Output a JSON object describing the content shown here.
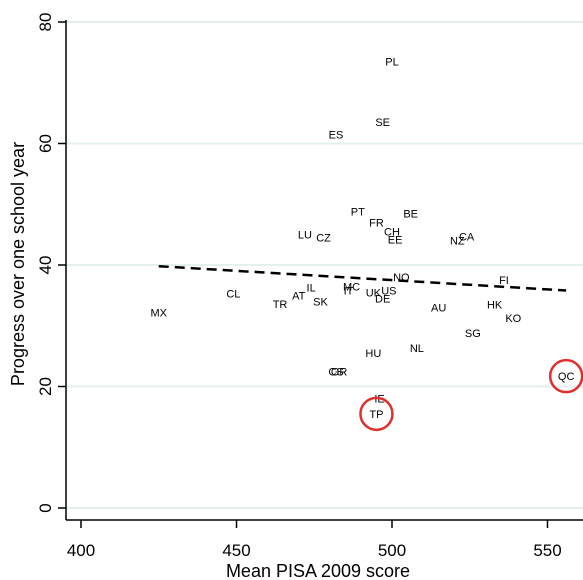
{
  "chart_data": {
    "type": "scatter",
    "xlabel": "Mean PISA 2009 score",
    "ylabel": "Progress over one school year",
    "xlim": [
      396,
      558
    ],
    "ylim": [
      -1,
      82
    ],
    "xticks": [
      400,
      450,
      500,
      550
    ],
    "yticks": [
      0,
      20,
      40,
      60,
      80
    ],
    "grid": "horizontal",
    "points": [
      {
        "label": "PL",
        "x": 500,
        "y": 73.5
      },
      {
        "label": "SE",
        "x": 497,
        "y": 63.5
      },
      {
        "label": "ES",
        "x": 482,
        "y": 61.5
      },
      {
        "label": "PT",
        "x": 489,
        "y": 48.8
      },
      {
        "label": "BE",
        "x": 506,
        "y": 48.5
      },
      {
        "label": "FR",
        "x": 495,
        "y": 47
      },
      {
        "label": "CH",
        "x": 500,
        "y": 45.5
      },
      {
        "label": "LU",
        "x": 472,
        "y": 45
      },
      {
        "label": "CZ",
        "x": 478,
        "y": 44.5
      },
      {
        "label": "EE",
        "x": 501,
        "y": 44.2
      },
      {
        "label": "NZ",
        "x": 521,
        "y": 44
      },
      {
        "label": "CA",
        "x": 524,
        "y": 44.7
      },
      {
        "label": "NO",
        "x": 503,
        "y": 38
      },
      {
        "label": "FI",
        "x": 536,
        "y": 37.5
      },
      {
        "label": "IL",
        "x": 474,
        "y": 36.3
      },
      {
        "label": "MC",
        "x": 487,
        "y": 36.5
      },
      {
        "label": "IT",
        "x": 486,
        "y": 35.8
      },
      {
        "label": "UK",
        "x": 494,
        "y": 35.5
      },
      {
        "label": "US",
        "x": 499,
        "y": 35.8
      },
      {
        "label": "CL",
        "x": 449,
        "y": 35.3
      },
      {
        "label": "AT",
        "x": 470,
        "y": 35
      },
      {
        "label": "DE",
        "x": 497,
        "y": 34.5
      },
      {
        "label": "SK",
        "x": 477,
        "y": 34
      },
      {
        "label": "TR",
        "x": 464,
        "y": 33.6
      },
      {
        "label": "HK",
        "x": 533,
        "y": 33.5
      },
      {
        "label": "AU",
        "x": 515,
        "y": 33
      },
      {
        "label": "MX",
        "x": 425,
        "y": 32.2
      },
      {
        "label": "KO",
        "x": 539,
        "y": 31.3
      },
      {
        "label": "SG",
        "x": 526,
        "y": 28.8
      },
      {
        "label": "NL",
        "x": 508,
        "y": 26.3
      },
      {
        "label": "HU",
        "x": 494,
        "y": 25.5
      },
      {
        "label": "GR",
        "x": 483,
        "y": 22.5
      },
      {
        "label": "CS",
        "x": 482,
        "y": 22.5
      },
      {
        "label": "IE",
        "x": 496,
        "y": 18
      },
      {
        "label": "TP",
        "x": 495,
        "y": 15.5,
        "highlight": true
      },
      {
        "label": "QC",
        "x": 556,
        "y": 21.7,
        "highlight": true
      }
    ],
    "fit_line": {
      "x": [
        425,
        556
      ],
      "y": [
        39.8,
        35.8
      ]
    },
    "colors": {
      "background": "#ffffff",
      "grid": "#e6efef",
      "highlight": "#e0302d",
      "text": "#000000"
    }
  }
}
